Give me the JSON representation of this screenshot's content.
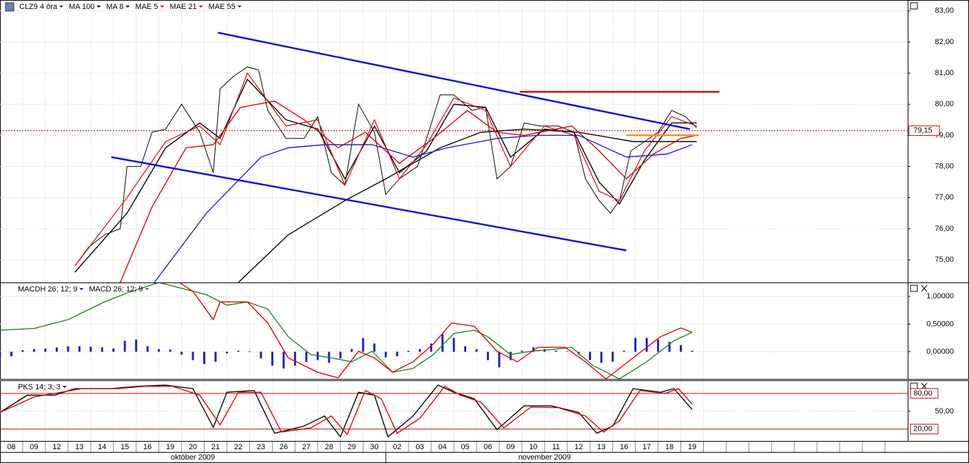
{
  "chart_data": [
    {
      "type": "line",
      "title": "CLZ9 4 óra",
      "title_color": "#2030a0",
      "xlim": [
        0,
        40
      ],
      "ylim": [
        74.27,
        83.35
      ],
      "grid": true,
      "yticks": [
        {
          "value": 75,
          "label": "75,00"
        },
        {
          "value": 76,
          "label": "76,00"
        },
        {
          "value": 77,
          "label": "77,00"
        },
        {
          "value": 78,
          "label": "78,00"
        },
        {
          "value": 79,
          "label": "79,00"
        },
        {
          "value": 80,
          "label": "80,00"
        },
        {
          "value": 81,
          "label": "81,00"
        },
        {
          "value": 82,
          "label": "82,00"
        },
        {
          "value": 83,
          "label": "83,00"
        }
      ],
      "last_price": {
        "value": 79.15,
        "label": "79,15"
      },
      "last_color": "#c00000",
      "series": [
        {
          "color": "#000000",
          "width": 1,
          "x": [
            3.3,
            3.9,
            4.6,
            5.3,
            5.6,
            6.2,
            6.7,
            7.3,
            8.0,
            8.8,
            9.4,
            9.7,
            10.3,
            10.9,
            11.4,
            11.8,
            12.6,
            13.4,
            14.0,
            14.6,
            15.2,
            15.8,
            16.5,
            17.0,
            17.6,
            18.4,
            18.8,
            19.4,
            20.0,
            20.8,
            21.4,
            21.9,
            22.5,
            23.1,
            23.8,
            24.6,
            25.3,
            25.8,
            26.4,
            26.9,
            27.3,
            27.8,
            28.4,
            29.0,
            29.6,
            30.2,
            30.7
          ],
          "values": [
            74.8,
            75.4,
            75.8,
            76.0,
            78.0,
            78.0,
            79.1,
            79.2,
            80.0,
            79.1,
            77.8,
            80.5,
            80.9,
            81.2,
            81.1,
            79.8,
            78.9,
            78.9,
            79.6,
            77.8,
            77.4,
            80.0,
            79.1,
            77.1,
            77.6,
            78.0,
            78.9,
            80.3,
            80.3,
            79.8,
            79.9,
            77.6,
            78.0,
            79.4,
            79.3,
            79.3,
            79.1,
            77.6,
            76.9,
            76.5,
            76.9,
            78.5,
            78.8,
            79.1,
            79.8,
            79.6,
            79.25
          ]
        },
        {
          "name": "MA 100",
          "color": "#000000",
          "width": 1.4,
          "x": [
            10.5,
            12.7,
            15.2,
            17.0,
            19.4,
            21.2,
            23.1,
            25.5,
            27.9,
            30.7
          ],
          "values": [
            74.27,
            75.8,
            76.9,
            77.6,
            78.6,
            79.1,
            79.2,
            79.1,
            78.8,
            78.8
          ]
        },
        {
          "name": "MA 8",
          "color": "#000000",
          "width": 1.4,
          "x": [
            3.3,
            5.6,
            7.3,
            8.8,
            9.7,
            10.9,
            12.6,
            14.0,
            15.2,
            16.5,
            17.6,
            18.8,
            20.0,
            21.4,
            22.5,
            24.0,
            25.3,
            26.4,
            27.3,
            28.4,
            29.6,
            30.7
          ],
          "values": [
            74.6,
            76.5,
            78.6,
            79.4,
            78.9,
            80.8,
            79.5,
            79.2,
            77.6,
            79.3,
            77.8,
            78.5,
            80.0,
            79.9,
            78.3,
            79.2,
            79.1,
            77.5,
            76.8,
            78.2,
            79.4,
            79.4
          ]
        },
        {
          "name": "MAE 5",
          "color": "#e00000",
          "width": 1.2,
          "x": [
            3.3,
            5.6,
            7.3,
            8.8,
            9.7,
            10.9,
            12.6,
            14.0,
            15.2,
            16.5,
            17.6,
            18.8,
            20.0,
            21.4,
            22.5,
            24.0,
            25.3,
            26.4,
            27.3,
            28.4,
            29.6,
            30.7
          ],
          "values": [
            74.8,
            77.0,
            78.8,
            79.3,
            78.7,
            81.0,
            79.3,
            79.5,
            77.4,
            79.5,
            77.6,
            78.7,
            80.2,
            79.8,
            78.0,
            79.3,
            79.0,
            77.2,
            76.9,
            78.5,
            79.6,
            79.3
          ]
        },
        {
          "name": "MAE 21",
          "color": "#e00000",
          "width": 1.4,
          "x": [
            5.3,
            6.7,
            8.2,
            9.4,
            10.6,
            12.1,
            13.4,
            14.9,
            16.1,
            17.6,
            19.1,
            20.6,
            21.9,
            23.1,
            25.2,
            26.4,
            27.6,
            28.8,
            30.0,
            30.7
          ],
          "values": [
            74.27,
            76.7,
            78.6,
            78.7,
            79.9,
            80.1,
            79.5,
            78.6,
            79.1,
            78.1,
            78.9,
            79.8,
            79.1,
            79.0,
            79.3,
            78.5,
            77.6,
            78.4,
            78.9,
            79.0
          ]
        },
        {
          "name": "MAE 55",
          "color": "#2020d0",
          "width": 1.4,
          "x": [
            6.8,
            9.1,
            11.5,
            12.7,
            14.3,
            16.4,
            18.2,
            19.7,
            21.9,
            23.7,
            25.5,
            27.6,
            29.4,
            30.5
          ],
          "values": [
            74.27,
            76.5,
            78.3,
            78.6,
            78.7,
            78.7,
            78.3,
            78.6,
            78.9,
            79.0,
            79.0,
            78.3,
            78.4,
            78.7
          ]
        }
      ],
      "lines": [
        {
          "color": "#1010e0",
          "x": [
            9.6,
            30.4
          ],
          "values": [
            82.3,
            79.2
          ]
        },
        {
          "color": "#1010e0",
          "x": [
            4.9,
            27.6
          ],
          "values": [
            78.3,
            75.3
          ]
        },
        {
          "color": "#e00000",
          "x": [
            22.9,
            31.7
          ],
          "values": [
            80.4,
            80.4
          ]
        },
        {
          "color": "#ff8c1a",
          "x": [
            27.6,
            30.8
          ],
          "values": [
            79.0,
            79.0
          ]
        }
      ]
    },
    {
      "type": "macd",
      "xlim": [
        0,
        40
      ],
      "ylim": [
        -0.49,
        1.25
      ],
      "grid": true,
      "yticks": [
        {
          "value": 0,
          "label": "0,00000"
        },
        {
          "value": 0.5,
          "label": "0,50000"
        },
        {
          "value": 1,
          "label": "1,00000"
        }
      ],
      "series": [
        {
          "name": "MACDH 26; 12; 9",
          "color": "#1f1fbf",
          "style": "bar",
          "x": [
            0,
            0.5,
            1,
            1.5,
            2,
            2.5,
            3,
            3.5,
            4,
            4.5,
            5,
            5.5,
            6,
            6.5,
            7,
            7.5,
            8,
            8.5,
            9,
            9.5,
            10,
            10.5,
            11,
            11.5,
            12,
            12.5,
            13,
            13.5,
            14,
            14.5,
            15,
            15.5,
            16,
            16.5,
            17,
            17.5,
            18,
            18.5,
            19,
            19.5,
            20,
            20.5,
            21,
            21.5,
            22,
            22.5,
            23,
            23.5,
            24,
            24.5,
            25,
            25.5,
            26,
            26.5,
            27,
            27.5,
            28,
            28.5,
            29,
            29.5,
            30,
            30.5
          ],
          "values": [
            -0.1,
            -0.08,
            0.03,
            0.05,
            0.06,
            0.08,
            0.1,
            0.1,
            0.09,
            0.08,
            0.06,
            0.2,
            0.22,
            0.1,
            0.05,
            0.04,
            -0.05,
            -0.15,
            -0.22,
            -0.18,
            -0.03,
            0.02,
            0.01,
            -0.12,
            -0.25,
            -0.3,
            -0.25,
            -0.18,
            -0.15,
            -0.2,
            -0.12,
            0.05,
            0.25,
            0.15,
            -0.1,
            -0.08,
            0.02,
            0.05,
            0.15,
            0.32,
            0.25,
            0.1,
            0.05,
            -0.15,
            -0.28,
            -0.15,
            0.02,
            0.08,
            0.05,
            0.02,
            0.01,
            -0.05,
            -0.15,
            -0.2,
            -0.18,
            0.02,
            0.25,
            0.25,
            0.22,
            0.18,
            0.12,
            0.02
          ]
        },
        {
          "name": "MACD 26; 12; 9",
          "color": "#1a8a1a",
          "style": "line",
          "x": [
            0,
            1.5,
            3.0,
            4.6,
            5.8,
            7.0,
            9.1,
            10.0,
            10.9,
            11.8,
            12.7,
            13.7,
            14.6,
            15.5,
            16.4,
            17.3,
            18.2,
            19.1,
            20.0,
            20.9,
            21.5,
            22.5,
            23.4,
            24.3,
            25.2,
            26.1,
            27.3,
            28.5,
            29.7,
            30.5
          ],
          "values": [
            0.39,
            0.42,
            0.58,
            0.9,
            1.09,
            1.25,
            1.03,
            0.84,
            0.9,
            0.77,
            0.27,
            -0.05,
            -0.11,
            -0.18,
            0.01,
            -0.37,
            -0.3,
            -0.05,
            0.33,
            0.39,
            0.27,
            -0.05,
            0.01,
            0.04,
            0.08,
            -0.24,
            -0.49,
            -0.18,
            0.2,
            0.35
          ]
        },
        {
          "color": "#e00000",
          "style": "line",
          "x": [
            7.9,
            8.5,
            9.4,
            9.7,
            10.9,
            11.8,
            12.7,
            14.0,
            14.9,
            15.8,
            16.5,
            17.3,
            18.2,
            19.1,
            19.9,
            20.9,
            21.9,
            22.8,
            23.7,
            24.9,
            25.8,
            26.7,
            27.9,
            29.1,
            30.0,
            30.5
          ],
          "values": [
            1.25,
            1.09,
            0.58,
            0.9,
            0.9,
            0.52,
            -0.11,
            -0.37,
            -0.47,
            0.01,
            -0.11,
            -0.37,
            -0.18,
            0.14,
            0.52,
            0.46,
            0.01,
            -0.18,
            0.08,
            0.08,
            -0.18,
            -0.49,
            -0.11,
            0.27,
            0.43,
            0.35
          ]
        }
      ]
    },
    {
      "type": "line",
      "title": "PKS 14; 3; 3",
      "title_color": "#000000",
      "xlim": [
        0,
        40
      ],
      "ylim": [
        0,
        102
      ],
      "grid": true,
      "yticks": [
        {
          "value": 50,
          "label": "50,00"
        }
      ],
      "levels": [
        {
          "value": 80,
          "label": "80,00"
        },
        {
          "value": 20,
          "label": "20,00"
        }
      ],
      "level_color": "#c00000",
      "series": [
        {
          "color": "#000000",
          "width": 1.4,
          "x": [
            0,
            1.2,
            2.4,
            3.3,
            4.9,
            6.1,
            7.3,
            8.5,
            9.4,
            10.0,
            11.2,
            12.1,
            13.4,
            14.3,
            15.0,
            15.8,
            16.5,
            17.1,
            18.2,
            19.3,
            20.0,
            20.9,
            21.9,
            23.1,
            24.3,
            25.5,
            26.3,
            27.0,
            27.9,
            29.1,
            29.7,
            30.5
          ],
          "values": [
            48,
            77,
            77,
            88,
            88,
            92,
            94,
            88,
            23,
            82,
            85,
            13,
            25,
            42,
            7,
            82,
            77,
            7,
            42,
            94,
            82,
            71,
            19,
            59,
            59,
            48,
            13,
            25,
            88,
            82,
            88,
            53
          ]
        },
        {
          "color": "#e00000",
          "width": 1.4,
          "x": [
            0,
            1.5,
            2.7,
            3.6,
            5.2,
            6.4,
            7.6,
            8.8,
            9.7,
            10.5,
            11.5,
            12.4,
            13.7,
            14.6,
            15.3,
            16.1,
            16.8,
            17.5,
            18.5,
            19.6,
            20.3,
            21.2,
            22.2,
            23.4,
            24.6,
            25.8,
            26.6,
            27.3,
            28.2,
            29.3,
            29.9,
            30.5
          ],
          "values": [
            48,
            74,
            82,
            88,
            88,
            92,
            92,
            77,
            27,
            82,
            82,
            15,
            22,
            42,
            11,
            85,
            71,
            13,
            38,
            92,
            77,
            65,
            22,
            57,
            56,
            42,
            15,
            34,
            85,
            80,
            88,
            62
          ]
        }
      ],
      "categories": [
        "08",
        "09",
        "12",
        "13",
        "14",
        "15",
        "16",
        "19",
        "20",
        "21",
        "22",
        "23",
        "26",
        "27",
        "28",
        "29",
        "30",
        "02",
        "03",
        "04",
        "05",
        "06",
        "09",
        "10",
        "11",
        "12",
        "13",
        "16",
        "17",
        "18",
        "19"
      ],
      "months": [
        {
          "name": "október 2009",
          "from": 0,
          "to": 16
        },
        {
          "name": "november 2009",
          "from": 17,
          "to": 30
        }
      ]
    }
  ]
}
